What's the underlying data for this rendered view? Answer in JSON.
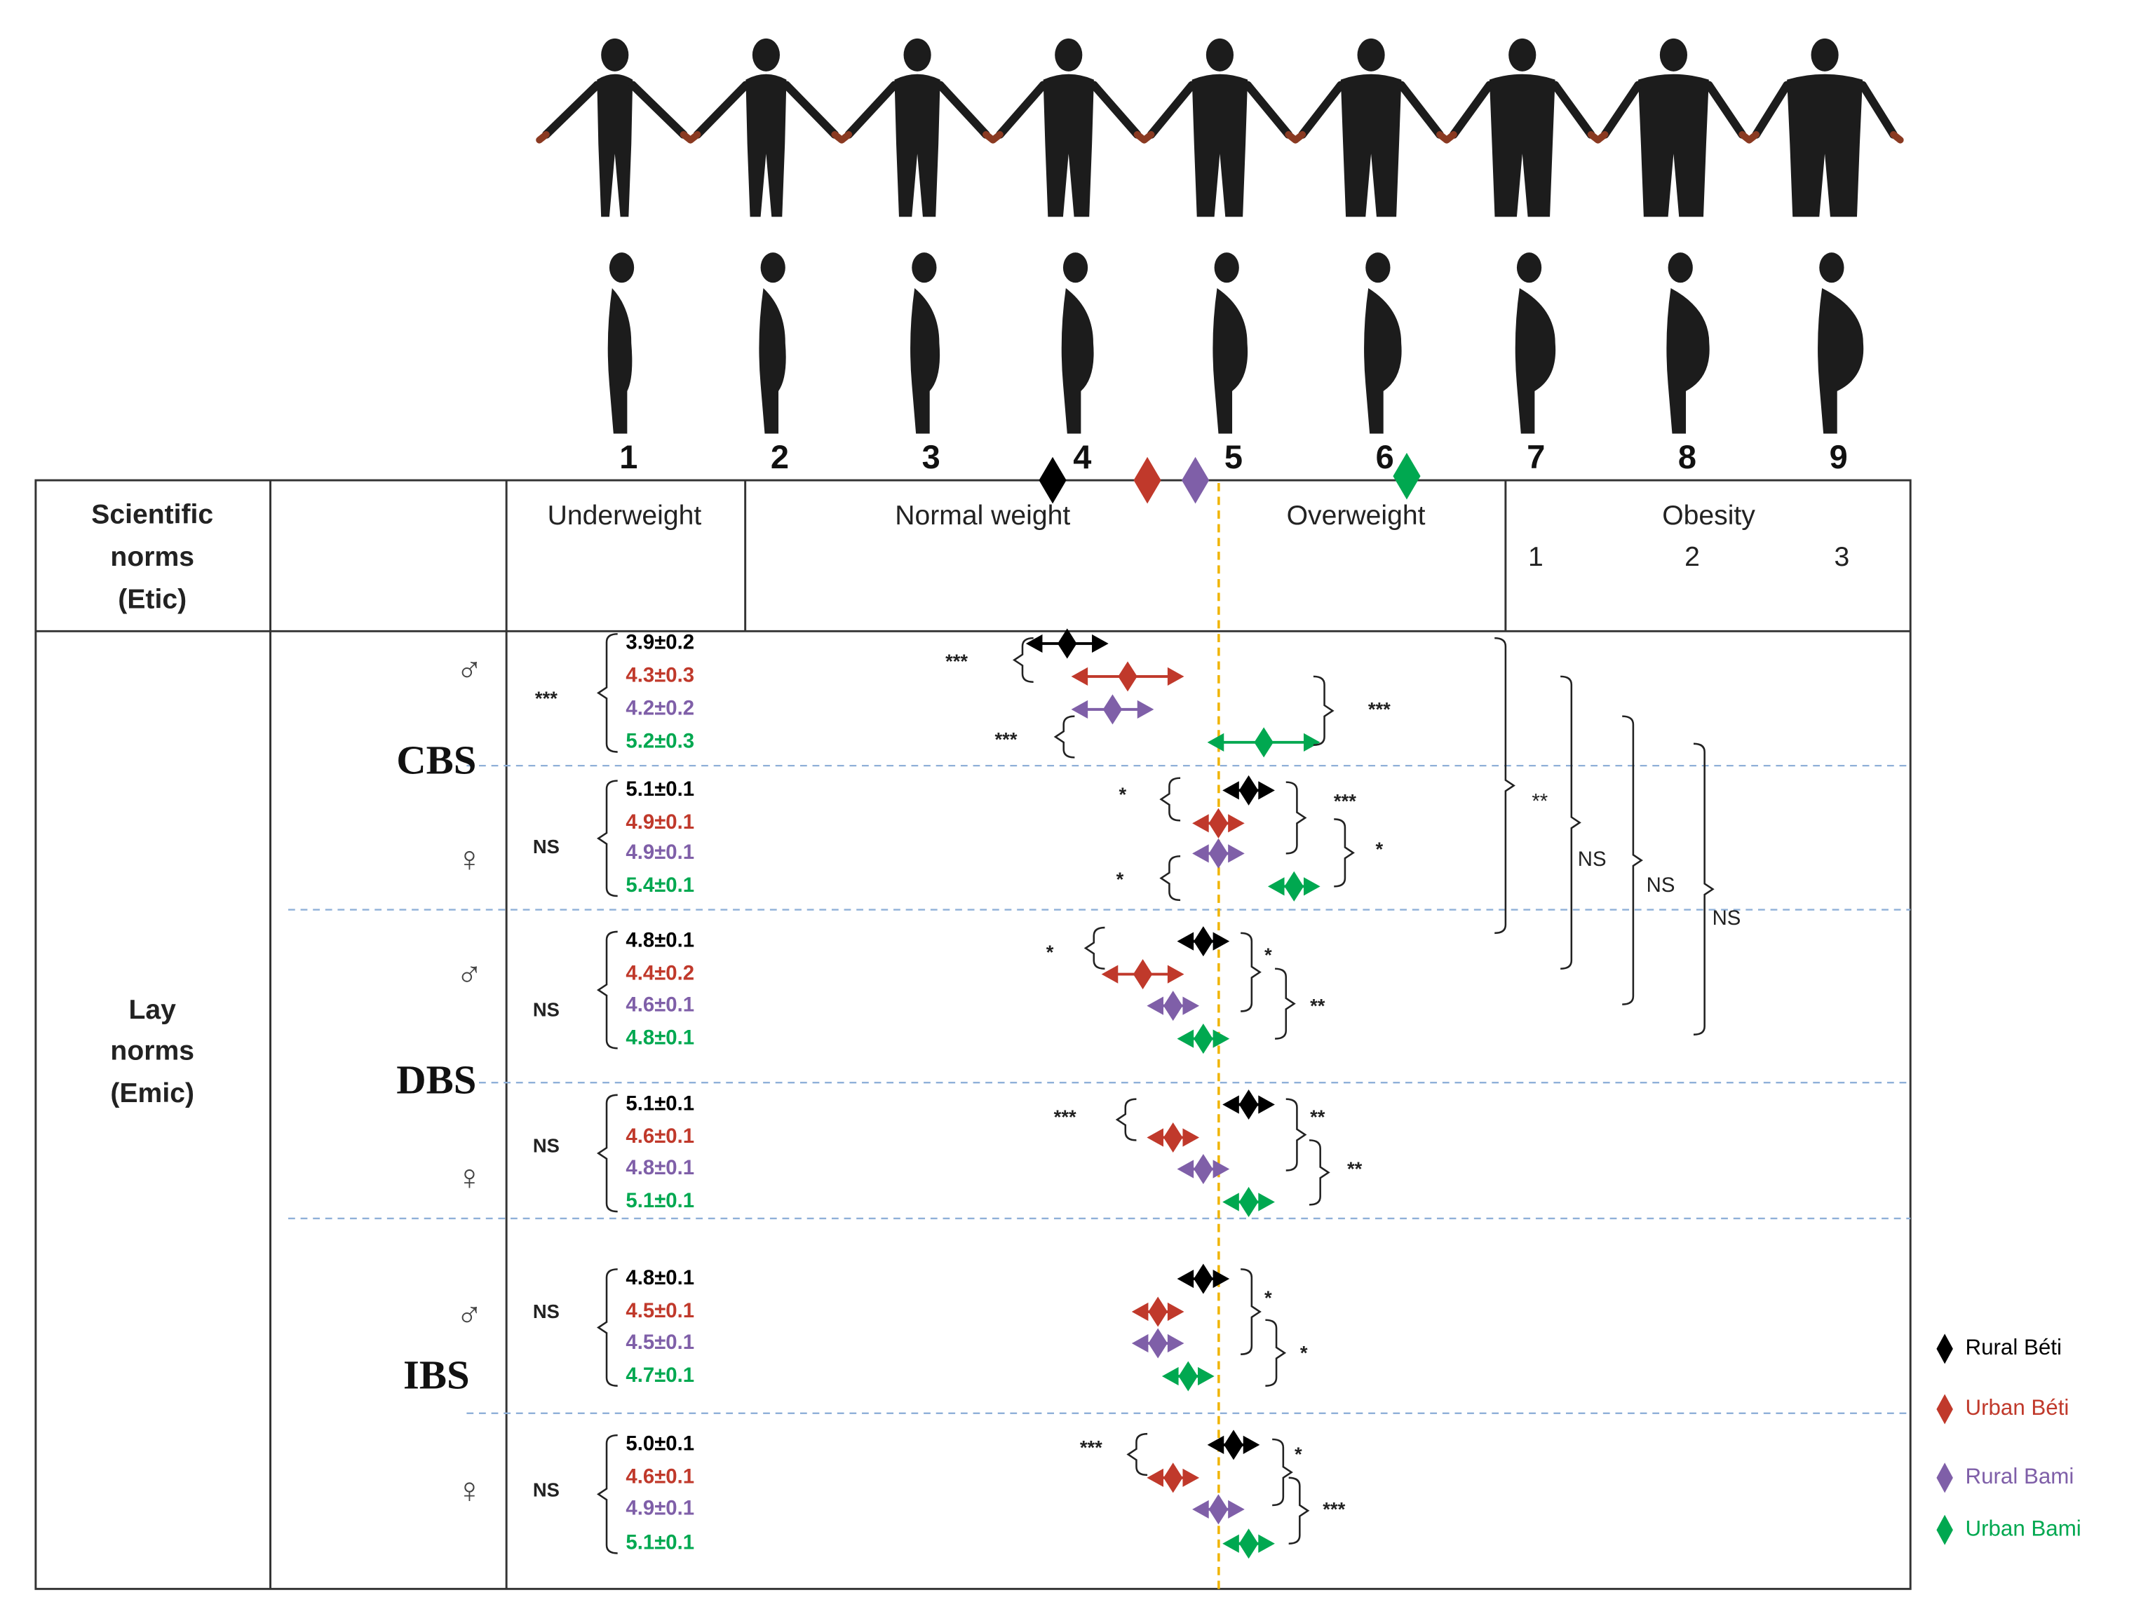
{
  "figure_numbers": [
    "1",
    "2",
    "3",
    "4",
    "5",
    "6",
    "7",
    "8",
    "9"
  ],
  "header": {
    "etic_label": [
      "Scientific",
      "norms",
      "(Etic)"
    ],
    "categories": [
      "Underweight",
      "Normal weight",
      "Overweight",
      "Obesity"
    ],
    "obesity_classes": [
      "1",
      "2",
      "3"
    ]
  },
  "emic_label": [
    "Lay",
    "norms",
    "(Emic)"
  ],
  "scales": [
    {
      "name": "CBS",
      "panels": [
        {
          "sex": "♂",
          "test": "***",
          "groups": [
            {
              "mean": 3.9,
              "sd": 0.2,
              "label": "3.9±0.2"
            },
            {
              "mean": 4.3,
              "sd": 0.3,
              "label": "4.3±0.3"
            },
            {
              "mean": 4.2,
              "sd": 0.2,
              "label": "4.2±0.2"
            },
            {
              "mean": 5.2,
              "sd": 0.3,
              "label": "5.2±0.3"
            }
          ],
          "comparisons": [
            "***",
            "***",
            "***"
          ]
        },
        {
          "sex": "♀",
          "test": "NS",
          "groups": [
            {
              "mean": 5.1,
              "sd": 0.1,
              "label": "5.1±0.1"
            },
            {
              "mean": 4.9,
              "sd": 0.1,
              "label": "4.9±0.1"
            },
            {
              "mean": 4.9,
              "sd": 0.1,
              "label": "4.9±0.1"
            },
            {
              "mean": 5.4,
              "sd": 0.1,
              "label": "5.4±0.1"
            }
          ],
          "comparisons": [
            "*",
            "***",
            "*",
            "*"
          ]
        }
      ]
    },
    {
      "name": "DBS",
      "panels": [
        {
          "sex": "♂",
          "test": "NS",
          "groups": [
            {
              "mean": 4.8,
              "sd": 0.1,
              "label": "4.8±0.1"
            },
            {
              "mean": 4.4,
              "sd": 0.2,
              "label": "4.4±0.2"
            },
            {
              "mean": 4.6,
              "sd": 0.1,
              "label": "4.6±0.1"
            },
            {
              "mean": 4.8,
              "sd": 0.1,
              "label": "4.8±0.1"
            }
          ],
          "comparisons": [
            "*",
            "*",
            "**"
          ]
        },
        {
          "sex": "♀",
          "test": "NS",
          "groups": [
            {
              "mean": 5.1,
              "sd": 0.1,
              "label": "5.1±0.1"
            },
            {
              "mean": 4.6,
              "sd": 0.1,
              "label": "4.6±0.1"
            },
            {
              "mean": 4.8,
              "sd": 0.1,
              "label": "4.8±0.1"
            },
            {
              "mean": 5.1,
              "sd": 0.1,
              "label": "5.1±0.1"
            }
          ],
          "comparisons": [
            "***",
            "**",
            "**"
          ]
        }
      ]
    },
    {
      "name": "IBS",
      "panels": [
        {
          "sex": "♂",
          "test": "NS",
          "groups": [
            {
              "mean": 4.8,
              "sd": 0.1,
              "label": "4.8±0.1"
            },
            {
              "mean": 4.5,
              "sd": 0.1,
              "label": "4.5±0.1"
            },
            {
              "mean": 4.5,
              "sd": 0.1,
              "label": "4.5±0.1"
            },
            {
              "mean": 4.7,
              "sd": 0.1,
              "label": "4.7±0.1"
            }
          ],
          "comparisons": [
            "*",
            "*"
          ]
        },
        {
          "sex": "♀",
          "test": "NS",
          "groups": [
            {
              "mean": 5.0,
              "sd": 0.1,
              "label": "5.0±0.1"
            },
            {
              "mean": 4.6,
              "sd": 0.1,
              "label": "4.6±0.1"
            },
            {
              "mean": 4.9,
              "sd": 0.1,
              "label": "4.9±0.1"
            },
            {
              "mean": 5.1,
              "sd": 0.1,
              "label": "5.1±0.1"
            }
          ],
          "comparisons": [
            "***",
            "*",
            "***"
          ]
        }
      ]
    }
  ],
  "scale_comparisons": [
    "**",
    "NS",
    "NS",
    "NS"
  ],
  "legend": [
    {
      "name": "Rural Béti",
      "color": "#000000"
    },
    {
      "name": "Urban Béti",
      "color": "#c0392b"
    },
    {
      "name": "Rural Bami",
      "color": "#7f5fa8"
    },
    {
      "name": "Urban Bami",
      "color": "#00a850"
    }
  ]
}
